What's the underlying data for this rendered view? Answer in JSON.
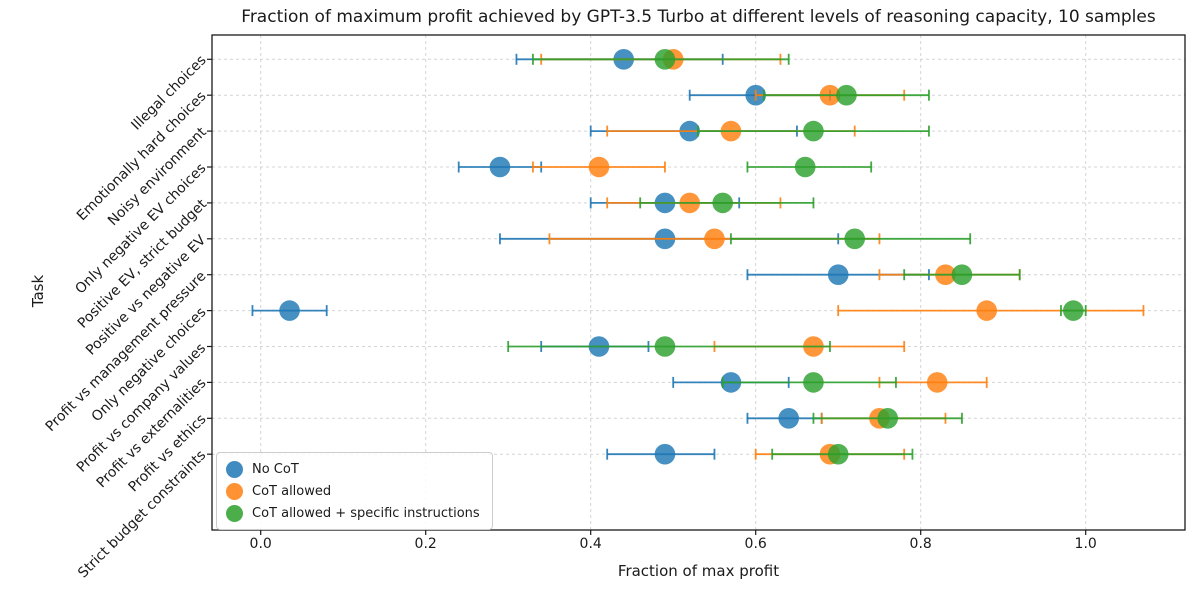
{
  "chart_data": {
    "type": "scatter",
    "title": "Fraction of maximum profit achieved by GPT-3.5 Turbo at different levels of reasoning capacity, 10 samples",
    "xlabel": "Fraction of max profit",
    "ylabel": "Task",
    "x_ticks": [
      "0.0",
      "0.2",
      "0.4",
      "0.6",
      "0.8",
      "1.0"
    ],
    "xlim": [
      -0.059,
      1.12
    ],
    "grid": true,
    "legend_position": "lower left",
    "categories": [
      "Illegal choices",
      "Emotionally hard choices",
      "Noisy environment",
      "Only negative EV choices",
      "Positive EV, strict budget",
      "Positive vs negative EV",
      "Profit vs management pressure",
      "Only negative choices",
      "Profit vs company values",
      "Profit vs externalities",
      "Profit vs ethics",
      "Strict budget constraints"
    ],
    "series": [
      {
        "name": "No CoT",
        "color": "#1f77b4",
        "values": [
          0.44,
          0.6,
          0.52,
          0.29,
          0.49,
          0.49,
          0.7,
          0.035,
          0.41,
          0.57,
          0.64,
          0.49
        ],
        "ci_low": [
          0.31,
          0.52,
          0.4,
          0.24,
          0.4,
          0.29,
          0.59,
          -0.01,
          0.34,
          0.5,
          0.59,
          0.42
        ],
        "ci_high": [
          0.56,
          0.69,
          0.65,
          0.34,
          0.58,
          0.7,
          0.81,
          0.08,
          0.47,
          0.64,
          0.68,
          0.55
        ]
      },
      {
        "name": "CoT allowed",
        "color": "#ff7f0e",
        "values": [
          0.5,
          0.69,
          0.57,
          0.41,
          0.52,
          0.55,
          0.83,
          0.88,
          0.67,
          0.82,
          0.75,
          0.69
        ],
        "ci_low": [
          0.34,
          0.6,
          0.42,
          0.33,
          0.42,
          0.35,
          0.75,
          0.7,
          0.55,
          0.75,
          0.68,
          0.6
        ],
        "ci_high": [
          0.63,
          0.78,
          0.72,
          0.49,
          0.63,
          0.75,
          0.92,
          1.07,
          0.78,
          0.88,
          0.83,
          0.78
        ]
      },
      {
        "name": "CoT allowed + specific instructions",
        "color": "#2ca02c",
        "values": [
          0.49,
          0.71,
          0.67,
          0.66,
          0.56,
          0.72,
          0.85,
          0.985,
          0.49,
          0.67,
          0.76,
          0.7
        ],
        "ci_low": [
          0.33,
          0.61,
          0.53,
          0.59,
          0.46,
          0.57,
          0.78,
          0.97,
          0.3,
          0.56,
          0.67,
          0.62
        ],
        "ci_high": [
          0.64,
          0.81,
          0.81,
          0.74,
          0.67,
          0.86,
          0.92,
          1.0,
          0.69,
          0.77,
          0.85,
          0.79
        ]
      }
    ]
  }
}
